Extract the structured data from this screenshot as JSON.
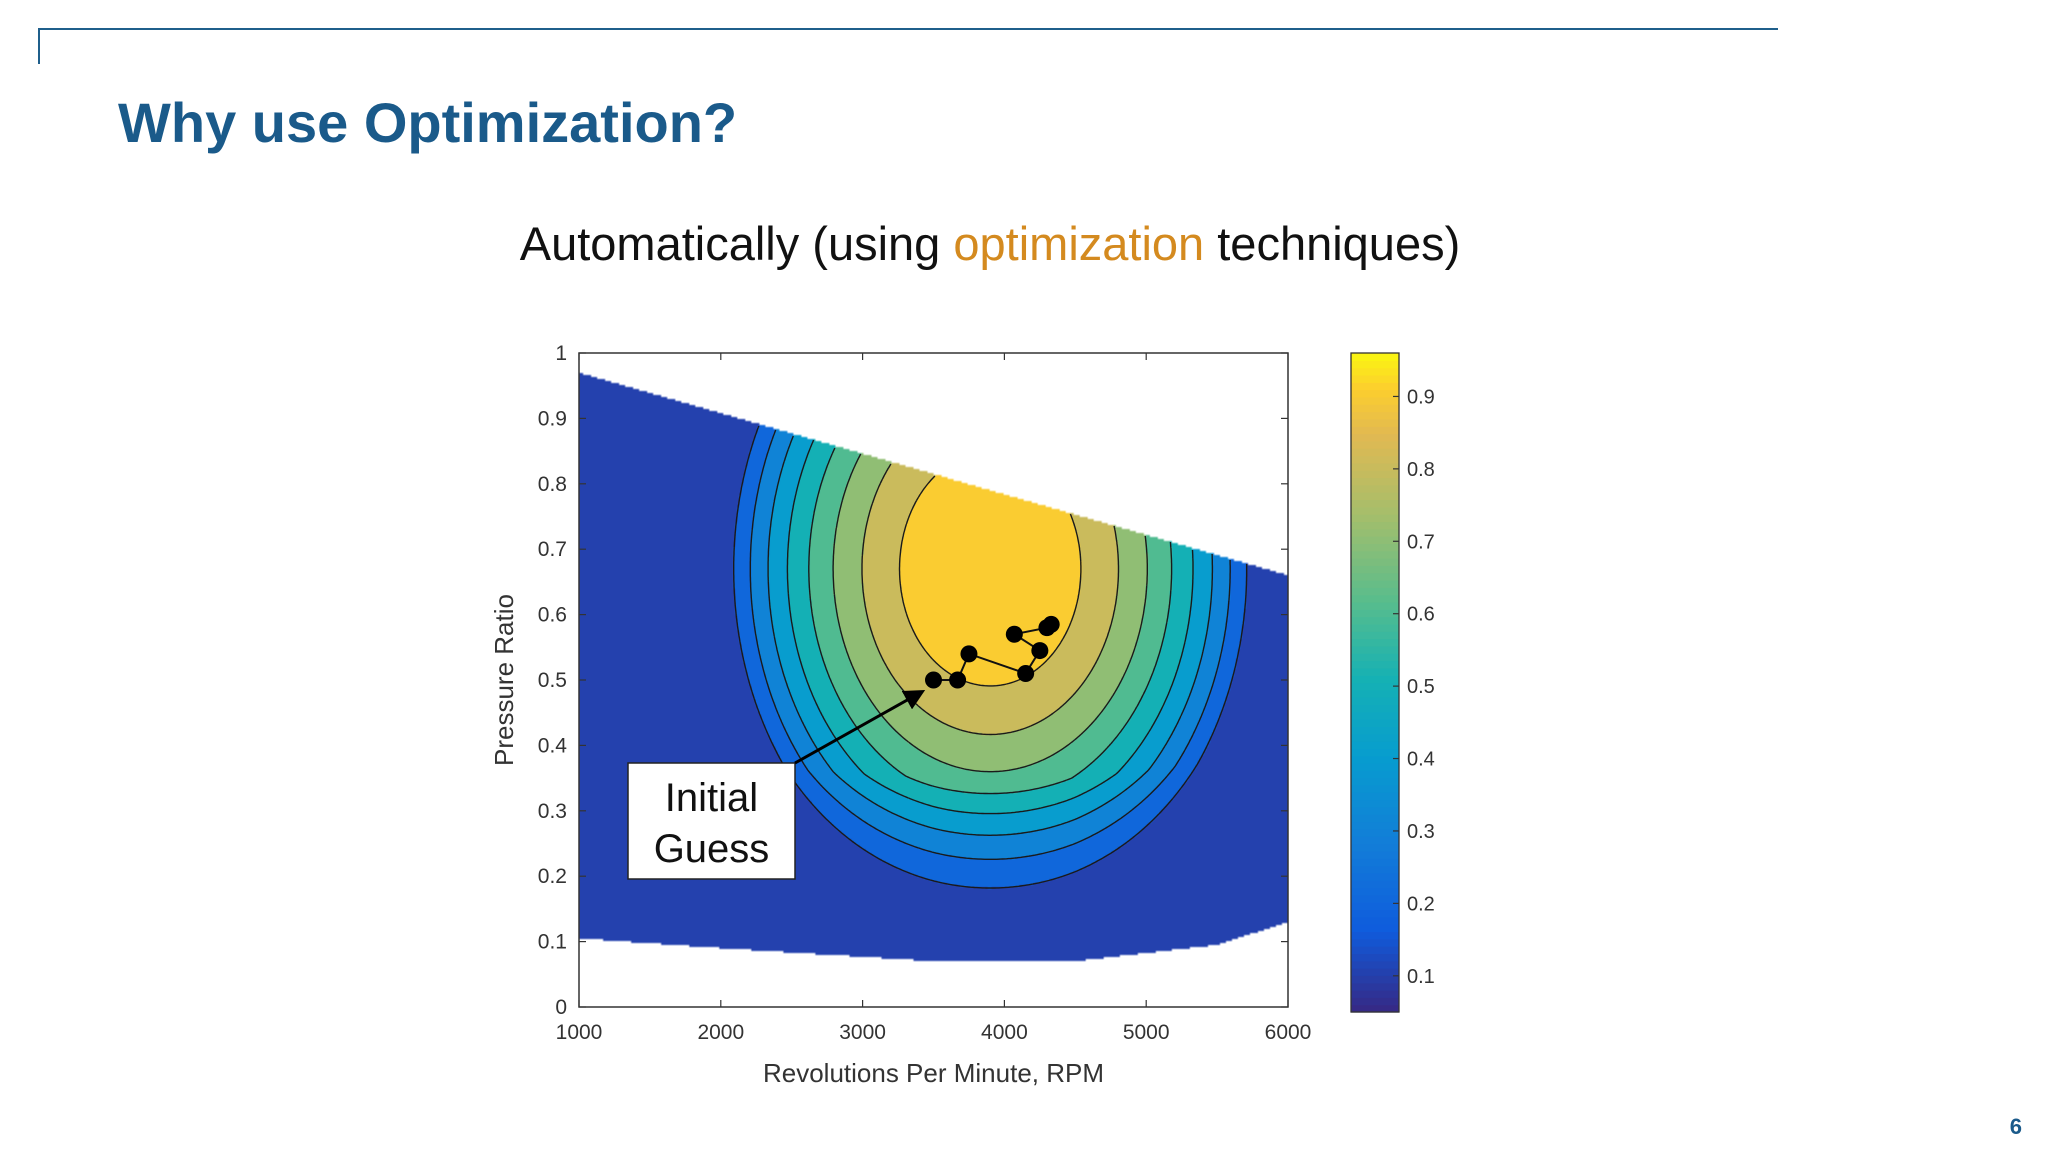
{
  "slide": {
    "title": "Why use Optimization?",
    "subtitle_before": "Automatically (using ",
    "subtitle_accent": "optimization",
    "subtitle_after": " techniques)",
    "page_number": "6",
    "accent_color": "#d48a1f",
    "title_color": "#1a5a8a"
  },
  "chart_data": {
    "type": "contour",
    "title": "",
    "xlabel": "Revolutions Per Minute, RPM",
    "ylabel": "Pressure Ratio",
    "xlim": [
      1000,
      6000
    ],
    "ylim": [
      0,
      1
    ],
    "x_ticks": [
      "1000",
      "2000",
      "3000",
      "4000",
      "5000",
      "6000"
    ],
    "y_ticks": [
      "0",
      "0.1",
      "0.2",
      "0.3",
      "0.4",
      "0.5",
      "0.6",
      "0.7",
      "0.8",
      "0.9",
      "1"
    ],
    "colorbar": {
      "range": [
        0.05,
        0.96
      ],
      "ticks": [
        "0.1",
        "0.2",
        "0.3",
        "0.4",
        "0.5",
        "0.6",
        "0.7",
        "0.8",
        "0.9"
      ],
      "colormap": "parula"
    },
    "domain_boundary": {
      "upper": [
        [
          1000,
          0.97
        ],
        [
          6000,
          0.66
        ]
      ],
      "lower": [
        [
          1000,
          0.105
        ],
        [
          2000,
          0.09
        ],
        [
          3500,
          0.07
        ],
        [
          4500,
          0.07
        ],
        [
          5500,
          0.095
        ],
        [
          6000,
          0.13
        ]
      ]
    },
    "peak": {
      "x": 3900,
      "y": 0.67,
      "value": 0.95
    },
    "optimization_path": [
      {
        "x": 3500,
        "y": 0.5
      },
      {
        "x": 3670,
        "y": 0.5
      },
      {
        "x": 3750,
        "y": 0.54
      },
      {
        "x": 4150,
        "y": 0.51
      },
      {
        "x": 4250,
        "y": 0.545
      },
      {
        "x": 4070,
        "y": 0.57
      },
      {
        "x": 4300,
        "y": 0.58
      },
      {
        "x": 4330,
        "y": 0.585
      }
    ],
    "annotation": {
      "line1": "Initial",
      "line2": "Guess",
      "target": {
        "x": 3500,
        "y": 0.5
      }
    }
  }
}
